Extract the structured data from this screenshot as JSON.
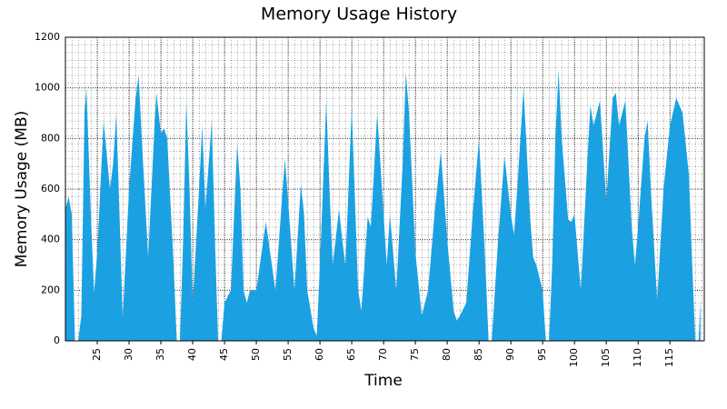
{
  "chart_data": {
    "type": "area",
    "title": "Memory Usage History",
    "x_label": "Time",
    "y_label": "Memory Usage (MB)",
    "x": [
      20,
      20.5,
      21,
      21.5,
      22,
      22.5,
      23,
      23.3,
      24,
      24.5,
      25,
      26,
      27,
      27.5,
      28,
      28.5,
      29,
      30,
      31,
      31.5,
      32,
      33,
      34,
      34.3,
      35,
      35.5,
      36,
      37,
      37.5,
      38,
      38.5,
      39,
      39.5,
      40,
      41,
      41.5,
      42,
      43,
      43.5,
      44,
      44.5,
      45,
      46,
      47,
      47.5,
      48,
      48.5,
      49,
      50,
      51,
      51.5,
      52,
      53,
      54,
      54.5,
      55,
      56,
      57,
      57.5,
      58,
      59,
      59.5,
      60,
      61,
      61.5,
      62,
      63,
      63.5,
      64,
      65,
      66,
      66.5,
      67,
      67.5,
      68,
      69,
      70,
      70.5,
      71,
      72,
      73,
      73.5,
      74,
      75,
      76,
      77,
      78,
      79,
      80,
      81,
      81.5,
      82,
      83,
      84,
      85,
      86,
      86.5,
      87,
      88,
      89,
      90,
      90.5,
      91,
      92,
      93,
      93.5,
      94,
      95,
      95.5,
      96,
      96.5,
      97,
      97.5,
      98,
      99,
      99.5,
      100,
      101,
      102,
      102.5,
      103,
      104,
      105,
      106,
      106.5,
      107,
      108,
      109,
      109.5,
      110,
      111,
      111.5,
      112,
      113,
      114,
      115,
      116,
      117,
      118,
      118.5,
      119,
      119.5,
      119.8
    ],
    "series": [
      {
        "name": "Memory",
        "color": "#1ba1e2",
        "values": [
          520,
          570,
          500,
          0,
          0,
          100,
          900,
          1000,
          500,
          190,
          350,
          870,
          600,
          700,
          900,
          500,
          90,
          600,
          950,
          1050,
          800,
          330,
          850,
          980,
          820,
          840,
          800,
          300,
          0,
          0,
          400,
          950,
          600,
          150,
          600,
          850,
          520,
          870,
          400,
          0,
          0,
          150,
          200,
          780,
          600,
          200,
          150,
          200,
          200,
          380,
          470,
          380,
          200,
          550,
          720,
          550,
          200,
          620,
          500,
          200,
          50,
          20,
          300,
          950,
          600,
          300,
          520,
          400,
          300,
          920,
          200,
          120,
          300,
          490,
          450,
          900,
          500,
          300,
          500,
          200,
          700,
          1060,
          900,
          350,
          100,
          200,
          500,
          750,
          400,
          120,
          80,
          100,
          150,
          500,
          800,
          300,
          0,
          0,
          400,
          730,
          500,
          420,
          600,
          1000,
          500,
          330,
          300,
          200,
          0,
          0,
          300,
          800,
          1070,
          800,
          480,
          470,
          500,
          200,
          700,
          930,
          850,
          950,
          550,
          960,
          980,
          850,
          950,
          450,
          300,
          450,
          800,
          870,
          600,
          160,
          600,
          850,
          960,
          900,
          650,
          300,
          0,
          0,
          160
        ]
      }
    ],
    "xlim": [
      20,
      120.4
    ],
    "ylim": [
      0,
      1200
    ],
    "xticks": [
      25,
      30,
      35,
      40,
      45,
      50,
      55,
      60,
      65,
      70,
      75,
      80,
      85,
      90,
      95,
      100,
      105,
      110,
      115
    ],
    "yticks": [
      0,
      200,
      400,
      600,
      800,
      1000,
      1200
    ],
    "grid": true
  }
}
